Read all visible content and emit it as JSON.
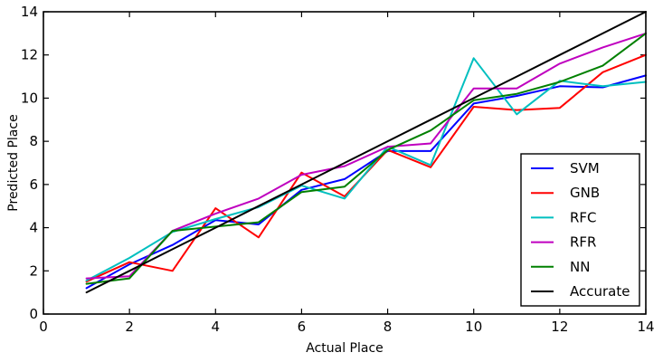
{
  "chart_data": {
    "type": "line",
    "xlabel": "Actual Place",
    "ylabel": "Predicted Place",
    "xlim": [
      0,
      14
    ],
    "ylim": [
      0,
      14
    ],
    "xticks": [
      0,
      2,
      4,
      6,
      8,
      10,
      12,
      14
    ],
    "yticks": [
      0,
      2,
      4,
      6,
      8,
      10,
      12,
      14
    ],
    "grid": false,
    "legend_position": "lower-right",
    "x": [
      1,
      2,
      3,
      4,
      5,
      6,
      7,
      8,
      9,
      10,
      11,
      12,
      13,
      14
    ],
    "series": [
      {
        "name": "SVM",
        "color": "#0000ff",
        "values": [
          1.2,
          2.3,
          3.2,
          4.35,
          4.15,
          5.75,
          6.25,
          7.55,
          7.55,
          9.75,
          10.1,
          10.55,
          10.5,
          11.05
        ]
      },
      {
        "name": "GNB",
        "color": "#ff0000",
        "values": [
          1.5,
          2.4,
          2.0,
          4.9,
          3.55,
          6.55,
          5.45,
          7.6,
          6.8,
          9.6,
          9.45,
          9.55,
          11.2,
          12.0
        ]
      },
      {
        "name": "RFC",
        "color": "#00bfbf",
        "values": [
          1.55,
          2.6,
          3.8,
          4.4,
          4.95,
          5.95,
          5.35,
          7.75,
          6.9,
          11.85,
          9.25,
          10.8,
          10.55,
          10.75
        ]
      },
      {
        "name": "RFR",
        "color": "#bf00bf",
        "values": [
          1.65,
          1.75,
          3.85,
          4.65,
          5.35,
          6.45,
          6.85,
          7.75,
          7.9,
          10.45,
          10.45,
          11.6,
          12.35,
          13.0
        ]
      },
      {
        "name": "NN",
        "color": "#008000",
        "values": [
          1.4,
          1.65,
          3.85,
          4.05,
          4.25,
          5.65,
          5.9,
          7.6,
          8.5,
          9.9,
          10.2,
          10.75,
          11.5,
          13.0
        ]
      },
      {
        "name": "Accurate",
        "color": "#000000",
        "values": [
          1,
          2,
          3,
          4,
          5,
          6,
          7,
          8,
          9,
          10,
          11,
          12,
          13,
          14
        ]
      }
    ]
  }
}
